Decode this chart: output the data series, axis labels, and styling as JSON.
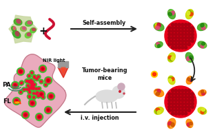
{
  "bg_color": "#ffffff",
  "fig_width": 3.12,
  "fig_height": 1.89,
  "dpi": 100,
  "labels": {
    "self_assembly": "Self-assembly",
    "tumor_bearing": "Tumor-bearing\nmice",
    "iv_injection": "i.v. injection",
    "nir": "NIR light",
    "pa": "PA",
    "fl": "FL"
  },
  "colors": {
    "red_core": "#e8001a",
    "dot_red": "#dd0011",
    "dot_dark": "#aa0011",
    "pink_tumor": "#e8a0b4",
    "tumor_border": "#c07888",
    "arrow_color": "#222222",
    "nir_beam": "#cc1100",
    "pa_waves": "#448866",
    "device_gray": "#888888",
    "mouse_body": "#dddddd",
    "mouse_ear": "#ccaabb",
    "green1": "#33aa22",
    "green2": "#55cc33",
    "green3": "#88bb44",
    "yellow1": "#ccdd00",
    "yellow2": "#ddcc00",
    "orange1": "#ff8800",
    "orange2": "#ee6600",
    "pink1": "#dd4477",
    "pink2": "#cc3366",
    "red1": "#cc1133",
    "cream": "#f0e8d0",
    "tan": "#c8a870"
  }
}
